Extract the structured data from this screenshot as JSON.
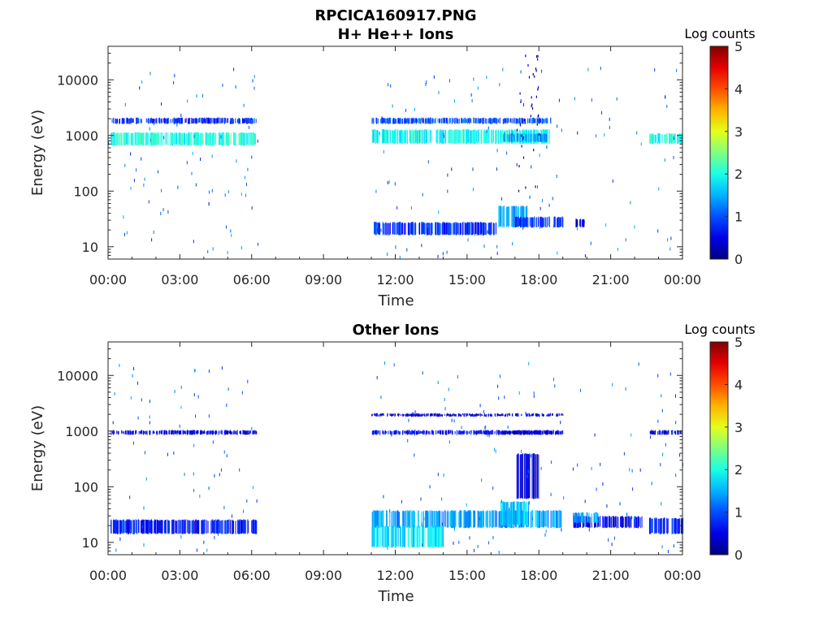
{
  "figure_title": "RPCICA160917.PNG",
  "chart_data": [
    {
      "type": "heatmap",
      "title": "H+ He++ Ions",
      "xlabel": "Time",
      "ylabel": "Energy (eV)",
      "x_tick_labels": [
        "00:00",
        "03:00",
        "06:00",
        "09:00",
        "12:00",
        "15:00",
        "18:00",
        "21:00",
        "00:00"
      ],
      "x_range_hours": [
        0,
        24
      ],
      "y_scale": "log",
      "y_range_eV": [
        6,
        40000
      ],
      "y_tick_values": [
        10,
        100,
        1000,
        10000
      ],
      "y_tick_labels": [
        "10",
        "100",
        "1000",
        "10000"
      ],
      "colorbar": {
        "label": "Log counts",
        "range": [
          0,
          5
        ],
        "tick_labels": [
          "0",
          "1",
          "2",
          "3",
          "4",
          "5"
        ],
        "colormap": "jet"
      },
      "data_gaps_hours": [
        [
          6.25,
          11.0
        ],
        [
          19.1,
          19.4
        ],
        [
          22.3,
          22.6
        ]
      ],
      "bands": [
        {
          "t_start": 0.1,
          "t_end": 6.2,
          "e_min": 650,
          "e_max": 1150,
          "log_counts": 2.0
        },
        {
          "t_start": 0.1,
          "t_end": 6.2,
          "e_min": 1600,
          "e_max": 2100,
          "log_counts": 0.8
        },
        {
          "t_start": 11.0,
          "t_end": 18.5,
          "e_min": 700,
          "e_max": 1300,
          "log_counts": 1.9
        },
        {
          "t_start": 11.0,
          "t_end": 18.5,
          "e_min": 1600,
          "e_max": 2100,
          "log_counts": 1.0
        },
        {
          "t_start": 16.5,
          "t_end": 18.3,
          "e_min": 750,
          "e_max": 1100,
          "log_counts": 1.4
        },
        {
          "t_start": 11.0,
          "t_end": 16.3,
          "e_min": 16,
          "e_max": 28,
          "log_counts": 0.8
        },
        {
          "t_start": 16.3,
          "t_end": 17.5,
          "e_min": 22,
          "e_max": 55,
          "log_counts": 1.5
        },
        {
          "t_start": 17.0,
          "t_end": 19.0,
          "e_min": 22,
          "e_max": 35,
          "log_counts": 0.8
        },
        {
          "t_start": 19.5,
          "t_end": 19.9,
          "e_min": 22,
          "e_max": 32,
          "log_counts": 0.3
        },
        {
          "t_start": 22.6,
          "t_end": 24.0,
          "e_min": 700,
          "e_max": 1100,
          "log_counts": 2.0
        },
        {
          "t_start": 17.0,
          "t_end": 18.0,
          "e_min": 100,
          "e_max": 30000,
          "log_counts": 0.4
        }
      ]
    },
    {
      "type": "heatmap",
      "title": "Other Ions",
      "xlabel": "Time",
      "ylabel": "Energy (eV)",
      "x_tick_labels": [
        "00:00",
        "03:00",
        "06:00",
        "09:00",
        "12:00",
        "15:00",
        "18:00",
        "21:00",
        "00:00"
      ],
      "x_range_hours": [
        0,
        24
      ],
      "y_scale": "log",
      "y_range_eV": [
        6,
        40000
      ],
      "y_tick_values": [
        10,
        100,
        1000,
        10000
      ],
      "y_tick_labels": [
        "10",
        "100",
        "1000",
        "10000"
      ],
      "colorbar": {
        "label": "Log counts",
        "range": [
          0,
          5
        ],
        "tick_labels": [
          "0",
          "1",
          "2",
          "3",
          "4",
          "5"
        ],
        "colormap": "jet"
      },
      "data_gaps_hours": [
        [
          6.25,
          11.0
        ],
        [
          19.1,
          19.4
        ],
        [
          22.3,
          22.6
        ]
      ],
      "bands": [
        {
          "t_start": 0.1,
          "t_end": 6.2,
          "e_min": 850,
          "e_max": 1050,
          "log_counts": 0.5
        },
        {
          "t_start": 0.1,
          "t_end": 6.2,
          "e_min": 14,
          "e_max": 26,
          "log_counts": 0.7
        },
        {
          "t_start": 11.0,
          "t_end": 19.0,
          "e_min": 850,
          "e_max": 1050,
          "log_counts": 0.6
        },
        {
          "t_start": 11.0,
          "t_end": 19.0,
          "e_min": 1800,
          "e_max": 2100,
          "log_counts": 0.4
        },
        {
          "t_start": 16.5,
          "t_end": 18.6,
          "e_min": 850,
          "e_max": 1050,
          "log_counts": 0.3
        },
        {
          "t_start": 11.0,
          "t_end": 19.0,
          "e_min": 18,
          "e_max": 38,
          "log_counts": 1.4
        },
        {
          "t_start": 11.0,
          "t_end": 14.0,
          "e_min": 8,
          "e_max": 20,
          "log_counts": 1.7
        },
        {
          "t_start": 16.4,
          "t_end": 17.6,
          "e_min": 20,
          "e_max": 55,
          "log_counts": 1.6
        },
        {
          "t_start": 19.4,
          "t_end": 22.3,
          "e_min": 18,
          "e_max": 30,
          "log_counts": 0.5
        },
        {
          "t_start": 19.4,
          "t_end": 20.5,
          "e_min": 22,
          "e_max": 35,
          "log_counts": 1.5
        },
        {
          "t_start": 22.6,
          "t_end": 24.0,
          "e_min": 14,
          "e_max": 28,
          "log_counts": 0.8
        },
        {
          "t_start": 22.6,
          "t_end": 24.0,
          "e_min": 850,
          "e_max": 1050,
          "log_counts": 0.5
        },
        {
          "t_start": 17.0,
          "t_end": 18.0,
          "e_min": 60,
          "e_max": 400,
          "log_counts": 0.4
        }
      ]
    }
  ]
}
